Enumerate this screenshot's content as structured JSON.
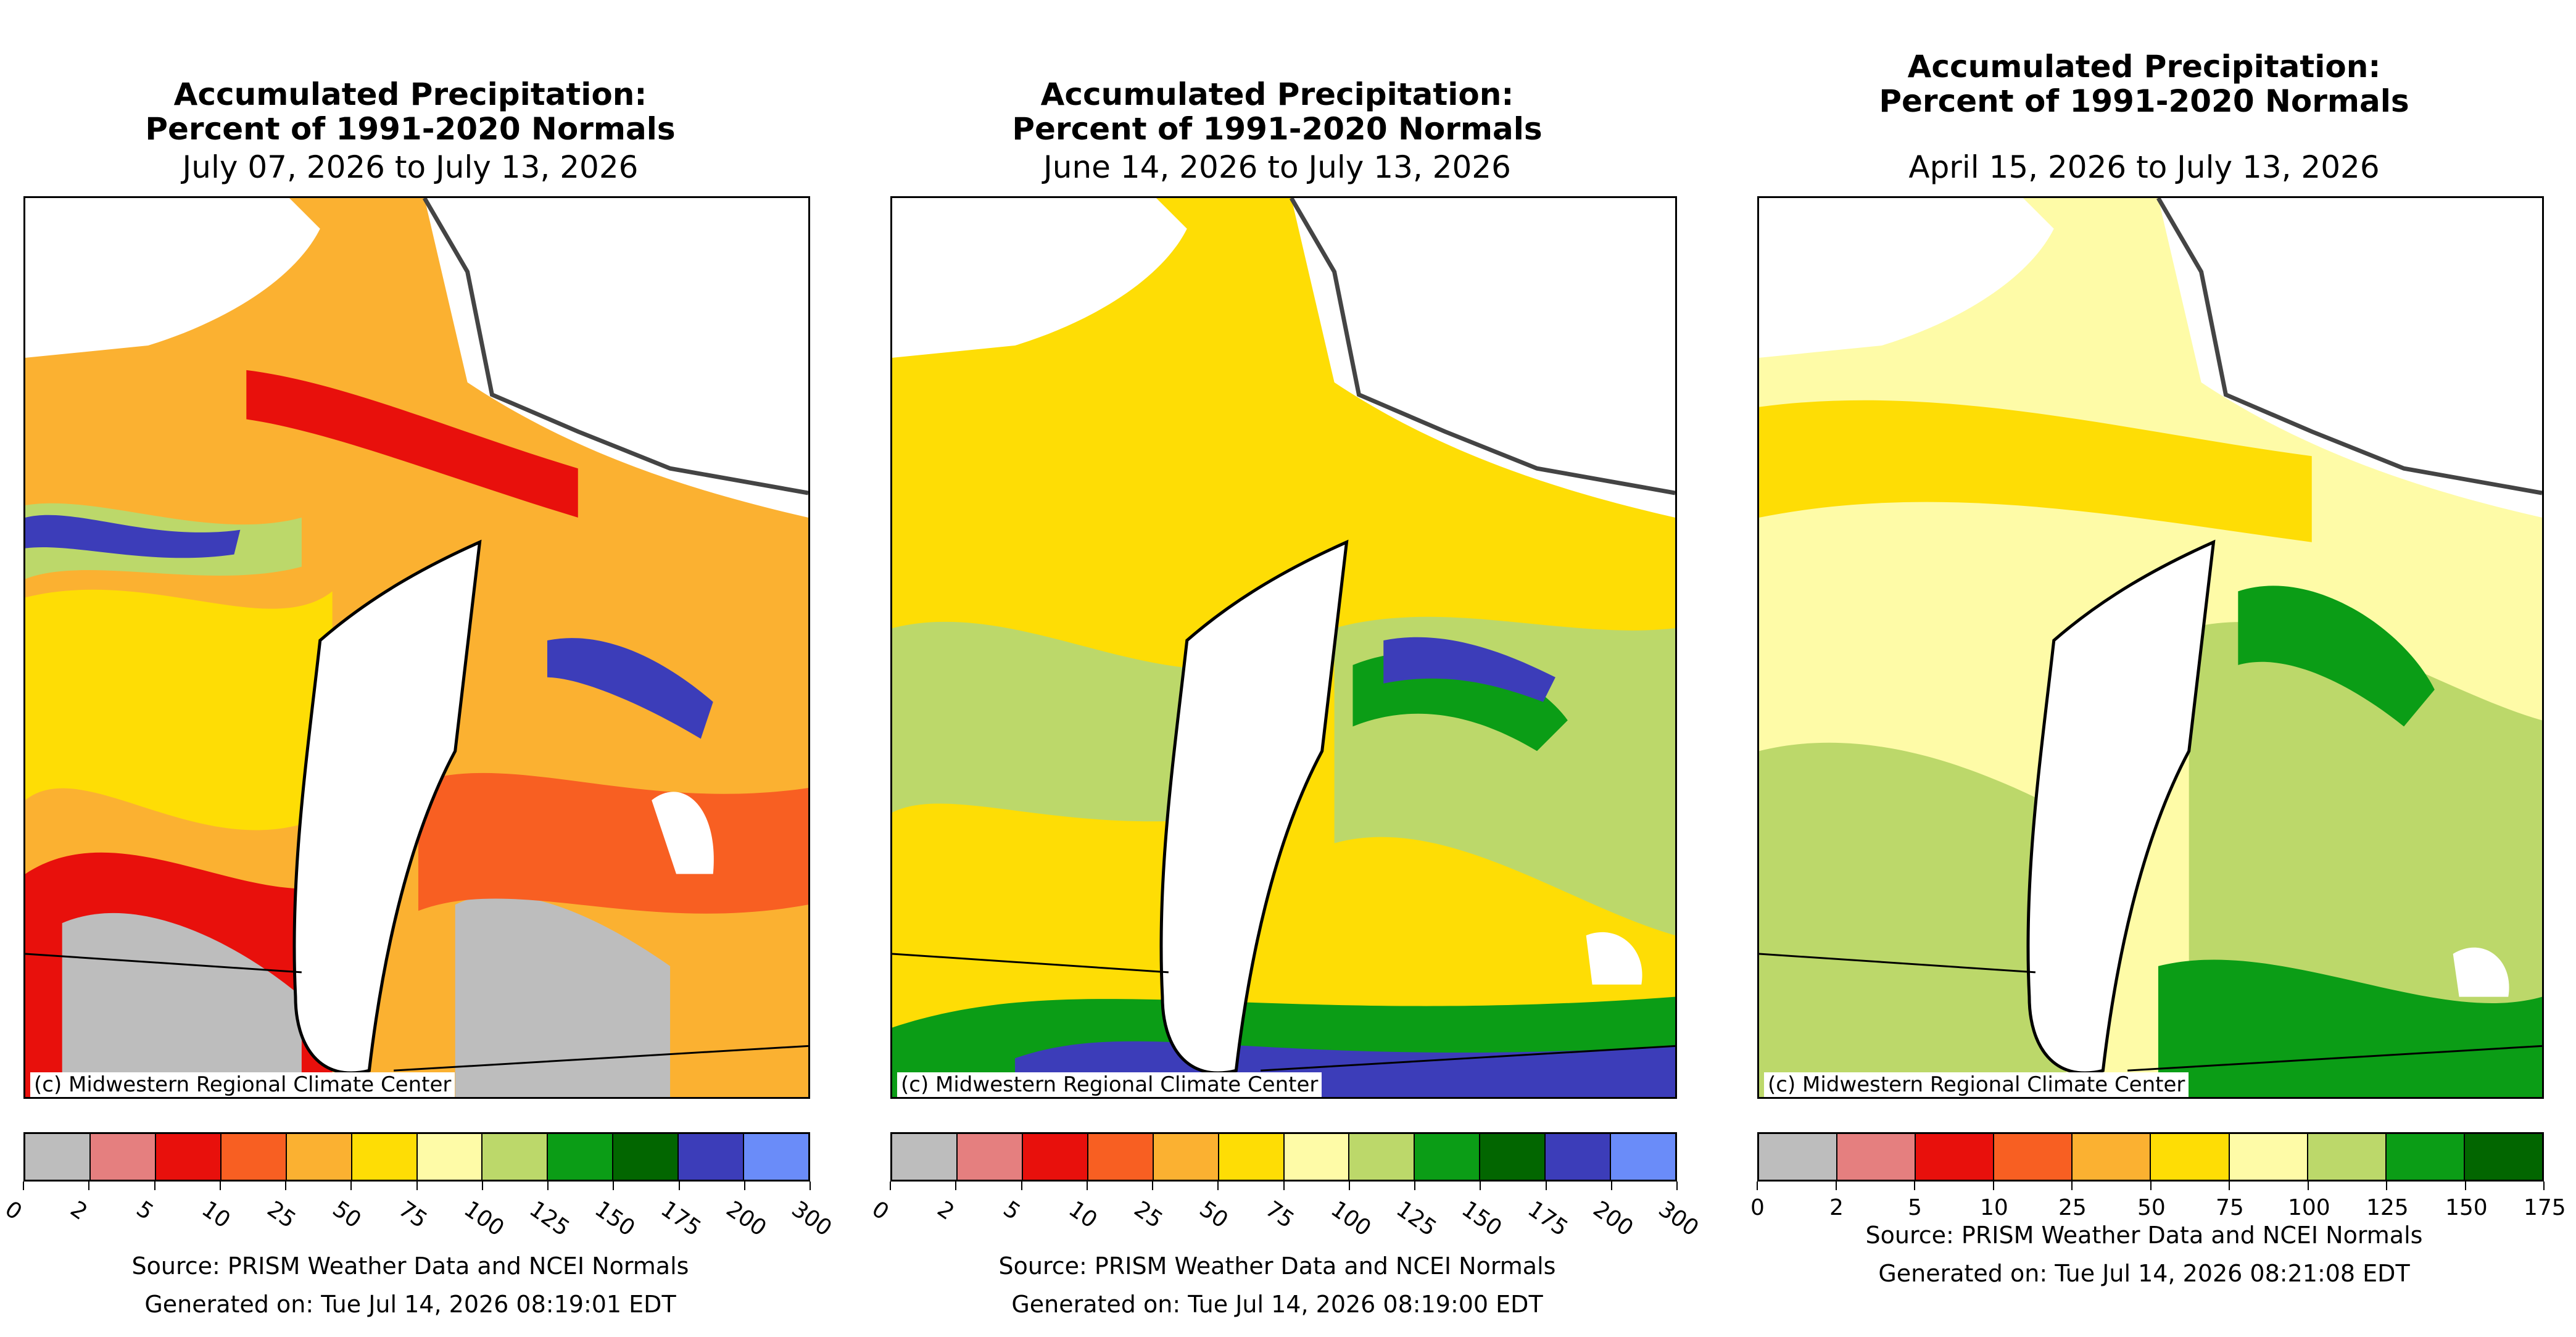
{
  "credit": "(c) Midwestern Regional Climate Center",
  "panels": [
    {
      "title_line1": "Accumulated Precipitation:",
      "title_line2": "Percent of 1991-2020 Normals",
      "date_range": "July 07, 2026 to July 13, 2026",
      "source": "Source: PRISM Weather Data and NCEI Normals",
      "generated": "Generated on: Tue Jul 14, 2026 08:19:01 EDT",
      "colorbar_ticks": [
        "0",
        "2",
        "5",
        "10",
        "25",
        "50",
        "75",
        "100",
        "125",
        "150",
        "175",
        "200",
        "300"
      ],
      "colorbar_colors": [
        "#bdbdbd",
        "#e57f7f",
        "#e8100c",
        "#f85f22",
        "#fbb131",
        "#fedd05",
        "#fefba7",
        "#bcd86a",
        "#0b9d16",
        "#026600",
        "#3c3db9",
        "#6a8cf9"
      ]
    },
    {
      "title_line1": "Accumulated Precipitation:",
      "title_line2": "Percent of 1991-2020 Normals",
      "date_range": "June 14, 2026 to July 13, 2026",
      "source": "Source: PRISM Weather Data and NCEI Normals",
      "generated": "Generated on: Tue Jul 14, 2026 08:19:00 EDT",
      "colorbar_ticks": [
        "0",
        "2",
        "5",
        "10",
        "25",
        "50",
        "75",
        "100",
        "125",
        "150",
        "175",
        "200",
        "300"
      ],
      "colorbar_colors": [
        "#bdbdbd",
        "#e57f7f",
        "#e8100c",
        "#f85f22",
        "#fbb131",
        "#fedd05",
        "#fefba7",
        "#bcd86a",
        "#0b9d16",
        "#026600",
        "#3c3db9",
        "#6a8cf9"
      ]
    },
    {
      "title_line1": "Accumulated Precipitation:",
      "title_line2": "Percent of 1991-2020 Normals",
      "date_range": "April 15, 2026 to July 13, 2026",
      "source": "Source: PRISM Weather Data and NCEI Normals",
      "generated": "Generated on: Tue Jul 14, 2026 08:21:08 EDT",
      "colorbar_ticks": [
        "0",
        "2",
        "5",
        "10",
        "25",
        "50",
        "75",
        "100",
        "125",
        "150",
        "175"
      ],
      "colorbar_colors": [
        "#bdbdbd",
        "#e57f7f",
        "#e8100c",
        "#f85f22",
        "#fbb131",
        "#fedd05",
        "#fefba7",
        "#bcd86a",
        "#0b9d16",
        "#026600"
      ]
    }
  ]
}
